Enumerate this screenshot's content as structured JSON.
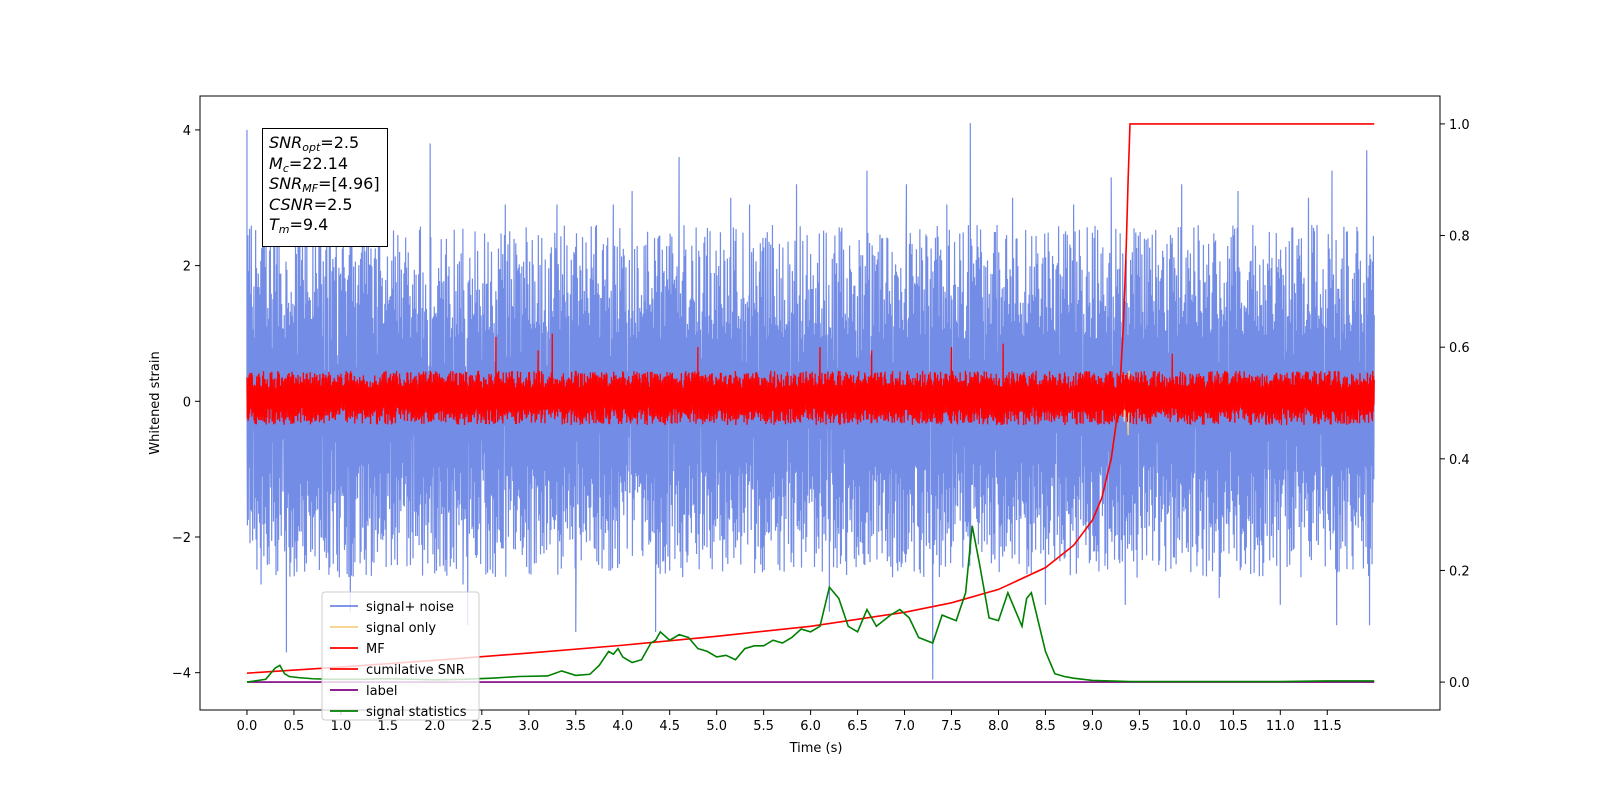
{
  "chart_data": {
    "type": "line",
    "x_axis": {
      "label": "Time (s)",
      "range": [
        -0.5,
        12.7
      ],
      "ticks": [
        0.0,
        0.5,
        1.0,
        1.5,
        2.0,
        2.5,
        3.0,
        3.5,
        4.0,
        4.5,
        5.0,
        5.5,
        6.0,
        6.5,
        7.0,
        7.5,
        8.0,
        8.5,
        9.0,
        9.5,
        10.0,
        10.5,
        11.0,
        11.5
      ],
      "tick_labels": [
        "0.0",
        "0.5",
        "1.0",
        "1.5",
        "2.0",
        "2.5",
        "3.0",
        "3.5",
        "4.0",
        "4.5",
        "5.0",
        "5.5",
        "6.0",
        "6.5",
        "7.0",
        "7.5",
        "8.0",
        "8.5",
        "9.0",
        "9.5",
        "10.0",
        "10.5",
        "11.0",
        "11.5"
      ]
    },
    "y_left": {
      "label": "Whitened strain",
      "range": [
        -4.55,
        4.5
      ],
      "ticks": [
        4,
        2,
        0,
        -2,
        -4
      ],
      "tick_labels": [
        "4",
        "2",
        "0",
        "−2",
        "−4"
      ]
    },
    "y_right": {
      "range": [
        -0.05,
        1.05
      ],
      "ticks": [
        1.0,
        0.8,
        0.6,
        0.4,
        0.2,
        0.0
      ],
      "tick_labels": [
        "1.0",
        "0.8",
        "0.6",
        "0.4",
        "0.2",
        "0.0"
      ]
    },
    "legend": {
      "placement": "lower-left",
      "entries": [
        {
          "label": "signal+ noise",
          "color": "#6b86e4"
        },
        {
          "label": "signal only",
          "color": "#f6cf86"
        },
        {
          "label": "MF",
          "color": "#ff0000"
        },
        {
          "label": "cumilative SNR",
          "color": "#ff0000"
        },
        {
          "label": "label",
          "color": "#800080"
        },
        {
          "label": "signal statistics",
          "color": "#008000"
        }
      ]
    },
    "series": [
      {
        "name": "signal+ noise",
        "axis": "left",
        "color": "#6b86e4",
        "x_range": [
          0.0,
          12.0
        ],
        "envelope": [
          -2.6,
          2.6
        ],
        "spikes": [
          [
            0.0,
            4.0
          ],
          [
            0.15,
            -2.7
          ],
          [
            0.18,
            2.4
          ],
          [
            0.32,
            3.4
          ],
          [
            0.42,
            -3.7
          ],
          [
            0.62,
            2.5
          ],
          [
            1.1,
            -3.1
          ],
          [
            1.4,
            3.2
          ],
          [
            1.95,
            3.8
          ],
          [
            2.3,
            -2.7
          ],
          [
            2.35,
            -3.3
          ],
          [
            2.75,
            2.9
          ],
          [
            3.3,
            2.9
          ],
          [
            3.5,
            -3.4
          ],
          [
            3.9,
            2.9
          ],
          [
            4.1,
            3.1
          ],
          [
            4.35,
            -3.4
          ],
          [
            4.6,
            3.6
          ],
          [
            5.15,
            3.0
          ],
          [
            5.35,
            2.9
          ],
          [
            5.85,
            3.2
          ],
          [
            6.2,
            -3.1
          ],
          [
            6.6,
            3.4
          ],
          [
            7.02,
            3.2
          ],
          [
            7.3,
            -4.1
          ],
          [
            7.45,
            2.9
          ],
          [
            7.7,
            4.1
          ],
          [
            8.15,
            3.0
          ],
          [
            8.5,
            -3.0
          ],
          [
            8.8,
            2.9
          ],
          [
            9.2,
            3.3
          ],
          [
            9.35,
            -3.0
          ],
          [
            9.95,
            3.2
          ],
          [
            10.35,
            -2.9
          ],
          [
            10.55,
            3.1
          ],
          [
            11.0,
            -3.0
          ],
          [
            11.3,
            3.0
          ],
          [
            11.55,
            3.4
          ],
          [
            11.6,
            -3.3
          ],
          [
            11.92,
            3.7
          ],
          [
            11.95,
            -3.3
          ]
        ]
      },
      {
        "name": "signal only",
        "axis": "left",
        "color": "#f6cf86",
        "x": [
          0.0,
          8.9,
          9.05,
          9.15,
          9.22,
          9.27,
          9.31,
          9.34,
          9.36,
          9.38,
          9.39,
          9.4,
          9.42,
          9.45,
          12.0
        ],
        "y": [
          0.0,
          0.0,
          0.04,
          -0.06,
          0.1,
          -0.15,
          0.22,
          -0.3,
          0.4,
          -0.5,
          0.45,
          -0.2,
          0.05,
          0.0,
          0.0
        ]
      },
      {
        "name": "MF",
        "axis": "left",
        "color": "#ff0000",
        "x_range": [
          0.0,
          12.0
        ],
        "envelope": [
          -0.35,
          0.45
        ],
        "spikes": [
          [
            2.65,
            0.95
          ],
          [
            3.25,
            1.0
          ],
          [
            3.1,
            0.75
          ],
          [
            4.8,
            0.8
          ],
          [
            6.1,
            0.8
          ],
          [
            6.65,
            0.75
          ],
          [
            7.5,
            0.8
          ],
          [
            8.05,
            0.85
          ],
          [
            9.85,
            0.7
          ]
        ]
      },
      {
        "name": "cumilative SNR",
        "axis": "right",
        "color": "#ff0000",
        "x": [
          0.0,
          1.0,
          2.0,
          3.0,
          4.0,
          5.0,
          6.0,
          7.0,
          7.5,
          8.0,
          8.5,
          8.8,
          9.0,
          9.1,
          9.2,
          9.25,
          9.3,
          9.33,
          9.36,
          9.38,
          9.4,
          12.0
        ],
        "y": [
          0.016,
          0.027,
          0.039,
          0.052,
          0.066,
          0.082,
          0.1,
          0.125,
          0.142,
          0.166,
          0.205,
          0.245,
          0.29,
          0.33,
          0.4,
          0.46,
          0.55,
          0.64,
          0.78,
          0.9,
          1.0,
          1.0
        ]
      },
      {
        "name": "label",
        "axis": "right",
        "color": "#800080",
        "x": [
          0.0,
          12.0
        ],
        "y": [
          0.0,
          0.0
        ]
      },
      {
        "name": "signal statistics",
        "axis": "right",
        "color": "#008000",
        "x": [
          0.0,
          0.2,
          0.3,
          0.35,
          0.4,
          0.45,
          0.55,
          0.7,
          0.9,
          1.2,
          1.5,
          1.8,
          2.0,
          2.3,
          2.6,
          2.9,
          3.2,
          3.35,
          3.5,
          3.65,
          3.75,
          3.85,
          3.9,
          3.95,
          4.0,
          4.05,
          4.1,
          4.2,
          4.3,
          4.35,
          4.4,
          4.5,
          4.6,
          4.7,
          4.8,
          4.9,
          5.0,
          5.1,
          5.2,
          5.3,
          5.4,
          5.5,
          5.6,
          5.7,
          5.8,
          5.9,
          6.0,
          6.1,
          6.2,
          6.3,
          6.4,
          6.5,
          6.6,
          6.7,
          6.85,
          6.95,
          7.05,
          7.15,
          7.3,
          7.4,
          7.55,
          7.65,
          7.72,
          7.8,
          7.9,
          8.0,
          8.1,
          8.2,
          8.25,
          8.3,
          8.35,
          8.5,
          8.6,
          8.7,
          8.8,
          9.0,
          9.4,
          10.0,
          11.0,
          11.5,
          12.0
        ],
        "y": [
          0.0,
          0.005,
          0.025,
          0.03,
          0.015,
          0.01,
          0.008,
          0.006,
          0.005,
          0.005,
          0.006,
          0.005,
          0.004,
          0.005,
          0.007,
          0.01,
          0.011,
          0.02,
          0.012,
          0.014,
          0.03,
          0.055,
          0.05,
          0.06,
          0.045,
          0.04,
          0.035,
          0.04,
          0.07,
          0.075,
          0.09,
          0.075,
          0.085,
          0.08,
          0.06,
          0.055,
          0.045,
          0.048,
          0.04,
          0.06,
          0.065,
          0.065,
          0.075,
          0.07,
          0.08,
          0.095,
          0.09,
          0.1,
          0.17,
          0.15,
          0.1,
          0.09,
          0.13,
          0.1,
          0.12,
          0.13,
          0.115,
          0.08,
          0.07,
          0.12,
          0.11,
          0.16,
          0.28,
          0.21,
          0.115,
          0.11,
          0.16,
          0.12,
          0.1,
          0.15,
          0.16,
          0.055,
          0.015,
          0.01,
          0.007,
          0.003,
          0.001,
          0.001,
          0.001,
          0.002,
          0.002
        ]
      }
    ],
    "info_box": {
      "lines": [
        {
          "name": "SNR",
          "sub": "opt",
          "value": "=2.5"
        },
        {
          "name": "M",
          "sub": "c",
          "value": "=22.14"
        },
        {
          "name": "SNR",
          "sub": "MF",
          "value": "=[4.96]"
        },
        {
          "name": "CSNR",
          "sub": "",
          "value": "=2.5"
        },
        {
          "name": "T",
          "sub": "m",
          "value": "=9.4"
        }
      ]
    }
  }
}
